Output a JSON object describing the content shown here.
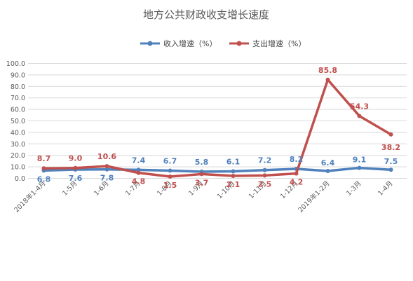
{
  "chart_data": {
    "type": "line",
    "title": "地方公共财政收支增长速度",
    "xlabel": "",
    "ylabel": "",
    "categories": [
      "2018年1-4月",
      "1-5月",
      "1-6月",
      "1-7月",
      "1-8月",
      "1-9月",
      "1-10月",
      "1-11月",
      "1-12月",
      "2019年1-2月",
      "1-3月",
      "1-4月"
    ],
    "y_tick_labels": [
      "0.0",
      "10.0",
      "20.0",
      "30.0",
      "40.0",
      "50.0",
      "60.0",
      "70.0",
      "80.0",
      "90.0",
      "100.0"
    ],
    "ylim": [
      0,
      100
    ],
    "grid": true,
    "legend_position": "top",
    "series": [
      {
        "name": "收入增速（%）",
        "color": "#4f81bd",
        "values": [
          6.8,
          7.6,
          7.8,
          7.4,
          6.7,
          5.8,
          6.1,
          7.2,
          8.2,
          6.4,
          9.1,
          7.5
        ],
        "labels": [
          "6.8",
          "7.6",
          "7.8",
          "7.4",
          "6.7",
          "5.8",
          "6.1",
          "7.2",
          "8.2",
          "6.4",
          "9.1",
          "7.5"
        ]
      },
      {
        "name": "支出增速（%）",
        "color": "#c0504d",
        "values": [
          8.7,
          9.0,
          10.6,
          4.8,
          1.5,
          3.7,
          2.1,
          2.5,
          4.2,
          85.8,
          54.3,
          38.2
        ],
        "labels": [
          "8.7",
          "9.0",
          "10.6",
          "4.8",
          "1.5",
          "3.7",
          "2.1",
          "2.5",
          "4.2",
          "85.8",
          "54.3",
          "38.2"
        ]
      }
    ]
  }
}
